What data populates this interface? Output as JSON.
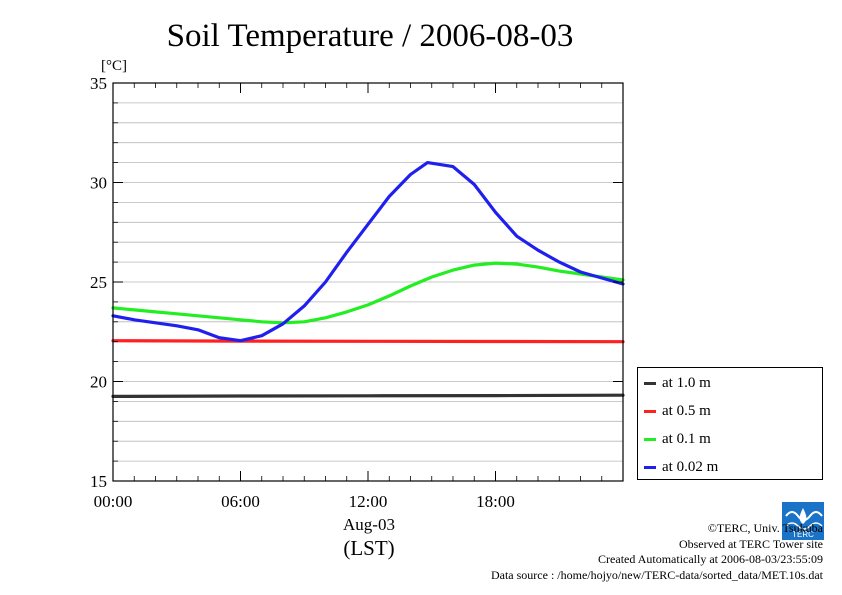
{
  "chart_data": {
    "type": "line",
    "title": "Soil Temperature / 2006-08-03",
    "ylabel": "[°C]",
    "xlabel_date": "Aug-03",
    "xlabel_zone": "(LST)",
    "xlim": [
      0,
      24
    ],
    "ylim": [
      15,
      35
    ],
    "xticks": [
      {
        "value": 0,
        "label": "00:00"
      },
      {
        "value": 6,
        "label": "06:00"
      },
      {
        "value": 12,
        "label": "12:00"
      },
      {
        "value": 18,
        "label": "18:00"
      }
    ],
    "yticks": [
      {
        "value": 15,
        "label": "15"
      },
      {
        "value": 20,
        "label": "20"
      },
      {
        "value": 25,
        "label": "25"
      },
      {
        "value": 30,
        "label": "30"
      },
      {
        "value": 35,
        "label": "35"
      }
    ],
    "grid": true,
    "legend_placement": "right-bottom",
    "series": [
      {
        "name": "at 1.0 m",
        "color": "#333333",
        "x": [
          0,
          6,
          12,
          18,
          24
        ],
        "y": [
          19.25,
          19.27,
          19.28,
          19.29,
          19.31
        ]
      },
      {
        "name": "at 0.5 m",
        "color": "#ff2020",
        "x": [
          0,
          6,
          12,
          18,
          24
        ],
        "y": [
          22.05,
          22.03,
          22.02,
          22.01,
          22.0
        ]
      },
      {
        "name": "at 0.1 m",
        "color": "#22ee22",
        "x": [
          0,
          1,
          2,
          3,
          4,
          5,
          6,
          7,
          8,
          9,
          10,
          11,
          12,
          13,
          14,
          15,
          16,
          17,
          18,
          19,
          20,
          21,
          22,
          23,
          24
        ],
        "y": [
          23.7,
          23.6,
          23.5,
          23.4,
          23.3,
          23.2,
          23.1,
          23.0,
          22.95,
          23.0,
          23.2,
          23.5,
          23.85,
          24.3,
          24.8,
          25.25,
          25.6,
          25.85,
          25.95,
          25.9,
          25.75,
          25.55,
          25.4,
          25.25,
          25.1
        ]
      },
      {
        "name": "at 0.02 m",
        "color": "#2020ee",
        "x": [
          0,
          1,
          2,
          3,
          4,
          5,
          6,
          7,
          8,
          9,
          10,
          11,
          12,
          13,
          14,
          14.8,
          16,
          17,
          18,
          19,
          20,
          21,
          22,
          23,
          24
        ],
        "y": [
          23.3,
          23.1,
          22.95,
          22.8,
          22.6,
          22.2,
          22.05,
          22.3,
          22.9,
          23.8,
          25.0,
          26.5,
          27.9,
          29.3,
          30.4,
          31.0,
          30.8,
          29.9,
          28.5,
          27.3,
          26.6,
          26.0,
          25.5,
          25.2,
          24.9
        ]
      }
    ]
  },
  "legend": {
    "items": [
      "at 1.0 m",
      "at 0.5 m",
      "at 0.1 m",
      "at 0.02 m"
    ]
  },
  "credits": {
    "copyright": "©TERC, Univ. Tsukuba",
    "observed": "Observed at TERC Tower site",
    "created": "Created Automatically at 2006-08-03/23:55:09",
    "source": "Data source : /home/hojyo/new/TERC-data/sorted_data/MET.10s.dat"
  },
  "logo": {
    "text": "TERC",
    "color": "#1a73c7"
  }
}
